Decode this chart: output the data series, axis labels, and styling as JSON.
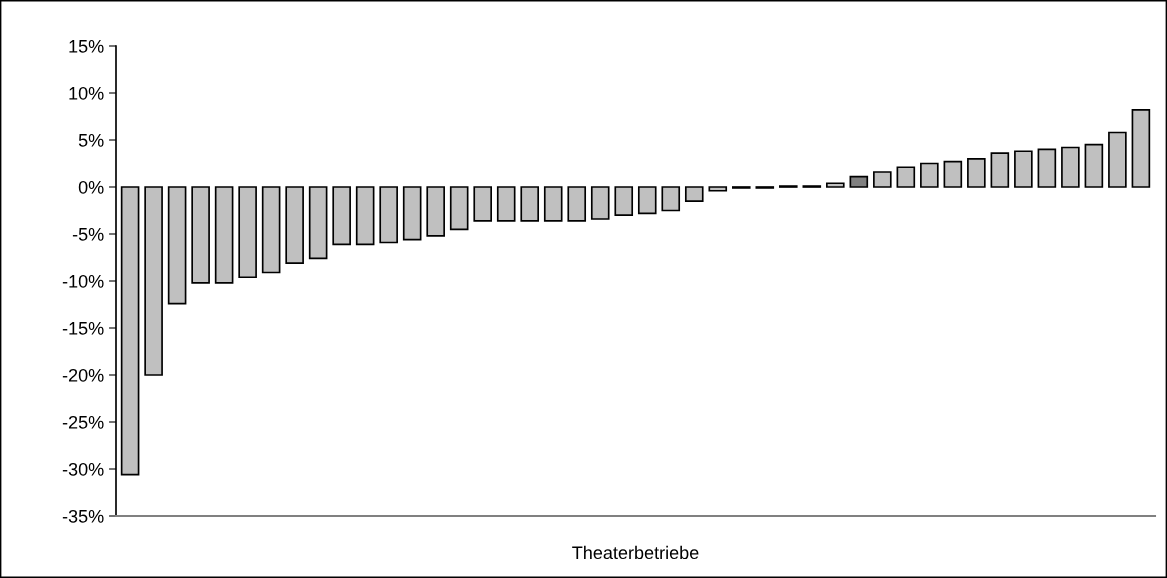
{
  "chart_data": {
    "type": "bar",
    "xlabel": "Theaterbetriebe",
    "categories": [
      null,
      null,
      null,
      null,
      null,
      null,
      null,
      null,
      null,
      null,
      null,
      null,
      null,
      null,
      null,
      null,
      null,
      null,
      null,
      null,
      null,
      null,
      null,
      null,
      null,
      null,
      null,
      null,
      null,
      null,
      null,
      null,
      null,
      null,
      null,
      null,
      null,
      null,
      null,
      null,
      null,
      null,
      null,
      null
    ],
    "values": [
      -30.6,
      -20.0,
      -12.4,
      -10.2,
      -10.2,
      -9.6,
      -9.1,
      -8.1,
      -7.6,
      -6.1,
      -6.1,
      -5.9,
      -5.6,
      -5.2,
      -4.5,
      -3.6,
      -3.6,
      -3.6,
      -3.6,
      -3.6,
      -3.4,
      -3.0,
      -2.8,
      -2.5,
      -1.5,
      -0.4,
      -0.1,
      -0.1,
      0.1,
      0.1,
      0.4,
      1.1,
      1.6,
      2.1,
      2.5,
      2.7,
      3.0,
      3.6,
      3.8,
      4.0,
      4.2,
      4.5,
      5.8,
      8.2
    ],
    "colors": [
      "#c0c0c0",
      "#c0c0c0",
      "#c0c0c0",
      "#c0c0c0",
      "#c0c0c0",
      "#c0c0c0",
      "#c0c0c0",
      "#c0c0c0",
      "#c0c0c0",
      "#c0c0c0",
      "#c0c0c0",
      "#c0c0c0",
      "#c0c0c0",
      "#c0c0c0",
      "#c0c0c0",
      "#c0c0c0",
      "#c0c0c0",
      "#c0c0c0",
      "#c0c0c0",
      "#c0c0c0",
      "#c0c0c0",
      "#c0c0c0",
      "#c0c0c0",
      "#c0c0c0",
      "#c0c0c0",
      "#c0c0c0",
      "#c0c0c0",
      "#c0c0c0",
      "#c0c0c0",
      "#c0c0c0",
      "#c0c0c0",
      "#808080",
      "#c0c0c0",
      "#c0c0c0",
      "#c0c0c0",
      "#c0c0c0",
      "#c0c0c0",
      "#c0c0c0",
      "#c0c0c0",
      "#c0c0c0",
      "#c0c0c0",
      "#c0c0c0",
      "#c0c0c0",
      "#c0c0c0"
    ],
    "ylim": [
      -35,
      15
    ],
    "yticks": [
      {
        "value": -35,
        "label": "-35%"
      },
      {
        "value": -30,
        "label": "-30%"
      },
      {
        "value": -25,
        "label": "-25%"
      },
      {
        "value": -20,
        "label": "-20%"
      },
      {
        "value": -15,
        "label": "-15%"
      },
      {
        "value": -10,
        "label": "-10%"
      },
      {
        "value": -5,
        "label": "-5%"
      },
      {
        "value": 0,
        "label": "0%"
      },
      {
        "value": 5,
        "label": "5%"
      },
      {
        "value": 10,
        "label": "10%"
      },
      {
        "value": 15,
        "label": "15%"
      }
    ],
    "grid": false,
    "legend": false
  }
}
